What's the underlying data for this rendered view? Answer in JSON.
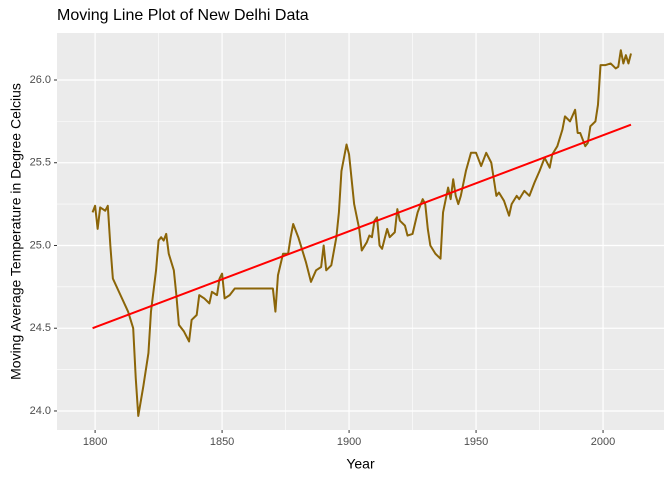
{
  "chart_data": {
    "type": "line",
    "title": "Moving Line Plot of New Delhi Data",
    "x_label": "Year",
    "y_label": "Moving Average Temperature in Degree Celcius",
    "xlim": [
      1785,
      2024
    ],
    "ylim": [
      23.885,
      26.284
    ],
    "xticks": [
      1800,
      1850,
      1900,
      1950,
      2000
    ],
    "yticks": [
      {
        "value": 24,
        "label": "24.0"
      },
      24.5,
      {
        "value": 25,
        "label": "25.0"
      },
      25.5,
      {
        "value": 26,
        "label": "26.0"
      }
    ],
    "x_minor_ticks": [
      1825,
      1875,
      1925,
      1975
    ],
    "y_minor_ticks": [
      24.25,
      24.75,
      25.25,
      25.75
    ],
    "grid": true,
    "series": [
      {
        "color": "#8B6508",
        "x": [
          1799,
          1800,
          1801,
          1802,
          1803,
          1804,
          1805,
          1806,
          1807,
          1810,
          1813,
          1815,
          1816,
          1817,
          1819,
          1821,
          1822,
          1824,
          1825,
          1826,
          1827,
          1828,
          1829,
          1831,
          1832,
          1833,
          1835,
          1837,
          1838,
          1840,
          1841,
          1843,
          1845,
          1846,
          1848,
          1849,
          1850,
          1851,
          1853,
          1855,
          1860,
          1865,
          1870,
          1871,
          1872,
          1874,
          1876,
          1877,
          1878,
          1880,
          1881,
          1883,
          1885,
          1887,
          1889,
          1890,
          1891,
          1893,
          1895,
          1896,
          1897,
          1899,
          1900,
          1901,
          1902,
          1904,
          1905,
          1907,
          1908,
          1909,
          1910,
          1911,
          1912,
          1913,
          1915,
          1916,
          1918,
          1919,
          1920,
          1922,
          1923,
          1925,
          1927,
          1929,
          1930,
          1931,
          1932,
          1934,
          1936,
          1937,
          1939,
          1940,
          1941,
          1942,
          1943,
          1944,
          1946,
          1948,
          1950,
          1952,
          1954,
          1956,
          1958,
          1959,
          1961,
          1963,
          1964,
          1966,
          1967,
          1969,
          1971,
          1973,
          1975,
          1977,
          1979,
          1980,
          1982,
          1984,
          1985,
          1987,
          1989,
          1990,
          1991,
          1993,
          1994,
          1995,
          1997,
          1998,
          1999,
          2000,
          2001,
          2003,
          2005,
          2006,
          2007,
          2008,
          2009,
          2010,
          2011
        ],
        "values": [
          25.2,
          25.24,
          25.1,
          25.23,
          25.22,
          25.21,
          25.24,
          25.0,
          24.8,
          24.7,
          24.6,
          24.5,
          24.2,
          23.97,
          24.15,
          24.35,
          24.6,
          24.85,
          25.03,
          25.05,
          25.03,
          25.07,
          24.95,
          24.85,
          24.7,
          24.52,
          24.48,
          24.42,
          24.55,
          24.58,
          24.7,
          24.68,
          24.65,
          24.72,
          24.7,
          24.8,
          24.83,
          24.68,
          24.7,
          24.74,
          24.74,
          24.74,
          24.74,
          24.6,
          24.82,
          24.95,
          24.95,
          25.05,
          25.13,
          25.05,
          25.0,
          24.9,
          24.78,
          24.85,
          24.87,
          25.0,
          24.85,
          24.88,
          25.05,
          25.2,
          25.45,
          25.61,
          25.55,
          25.4,
          25.25,
          25.1,
          24.97,
          25.02,
          25.06,
          25.05,
          25.15,
          25.17,
          25.0,
          24.98,
          25.1,
          25.05,
          25.08,
          25.22,
          25.15,
          25.12,
          25.06,
          25.07,
          25.2,
          25.28,
          25.25,
          25.1,
          25.0,
          24.95,
          24.92,
          25.2,
          25.35,
          25.28,
          25.4,
          25.3,
          25.25,
          25.3,
          25.45,
          25.56,
          25.56,
          25.48,
          25.56,
          25.5,
          25.3,
          25.32,
          25.27,
          25.18,
          25.25,
          25.3,
          25.28,
          25.33,
          25.3,
          25.38,
          25.45,
          25.53,
          25.47,
          25.55,
          25.6,
          25.7,
          25.78,
          25.75,
          25.82,
          25.68,
          25.68,
          25.6,
          25.62,
          25.72,
          25.75,
          25.85,
          26.09,
          26.09,
          26.09,
          26.1,
          26.07,
          26.08,
          26.18,
          26.1,
          26.15,
          26.1,
          26.16
        ]
      },
      {
        "color": "#FF0000",
        "x": [
          1799,
          2011
        ],
        "values": [
          24.5,
          25.73
        ]
      }
    ]
  }
}
